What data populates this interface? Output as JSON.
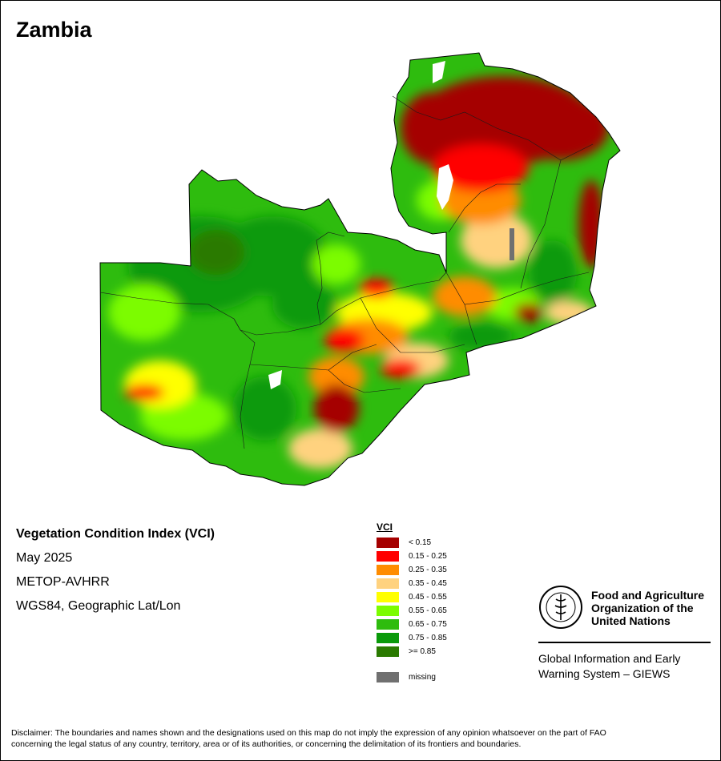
{
  "map": {
    "country_name": "Zambia"
  },
  "info": {
    "title": "Vegetation Condition Index (VCI)",
    "date": "May 2025",
    "sensor": "METOP-AVHRR",
    "projection": "WGS84, Geographic Lat/Lon"
  },
  "legend": {
    "title": "VCI",
    "items": [
      {
        "label": "< 0.15",
        "color": "#a50000"
      },
      {
        "label": "0.15 - 0.25",
        "color": "#ff0000"
      },
      {
        "label": "0.25 - 0.35",
        "color": "#ff8c00"
      },
      {
        "label": "0.35 - 0.45",
        "color": "#ffd27f"
      },
      {
        "label": "0.45 - 0.55",
        "color": "#ffff00"
      },
      {
        "label": "0.55 - 0.65",
        "color": "#7cfc00"
      },
      {
        "label": "0.65 - 0.75",
        "color": "#2ebc0e"
      },
      {
        "label": "0.75 - 0.85",
        "color": "#0a9a0a"
      },
      {
        "label": ">= 0.85",
        "color": "#2a7a00"
      }
    ],
    "missing": {
      "label": "missing",
      "color": "#707070"
    }
  },
  "logo": {
    "org_line1": "Food and Agriculture",
    "org_line2": "Organization of the",
    "org_line3": "United Nations",
    "seal_text": "FAO",
    "seal_motto": "FIAT PANIS",
    "giews_line1": "Global Information and Early",
    "giews_line2": "Warning System – GIEWS"
  },
  "disclaimer": {
    "line1": "Disclaimer: The boundaries and names shown and the designations used on this map do not imply the expression of any opinion whatsoever on the part of FAO",
    "line2": "concerning the legal status of any country, territory, area or of its authorities, or concerning the delimitation of its frontiers and boundaries."
  }
}
